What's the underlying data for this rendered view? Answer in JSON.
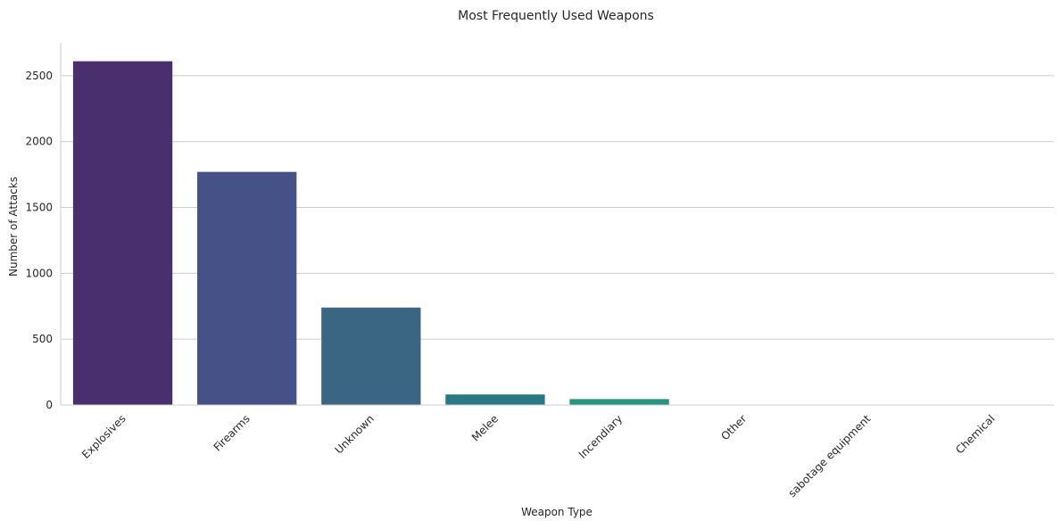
{
  "chart_data": {
    "type": "bar",
    "title": "Most Frequently Used Weapons",
    "xlabel": "Weapon Type",
    "ylabel": "Number of Attacks",
    "categories": [
      "Explosives",
      "Firearms",
      "Unknown",
      "Melee",
      "Incendiary",
      "Other",
      "sabotage equipment",
      "Chemical"
    ],
    "values": [
      2610,
      1770,
      740,
      80,
      45,
      2,
      1,
      1
    ],
    "ylim": [
      0,
      2750
    ],
    "yticks": [
      0,
      500,
      1000,
      1500,
      2000,
      2500
    ],
    "grid": "horizontal",
    "colors": [
      "#4a2f6e",
      "#455187",
      "#3a6683",
      "#2a7883",
      "#26947e",
      "#2fb07a",
      "#5cc26a",
      "#90d455"
    ],
    "gridColor": "#cccccc",
    "axisColor": "#cccccc"
  }
}
